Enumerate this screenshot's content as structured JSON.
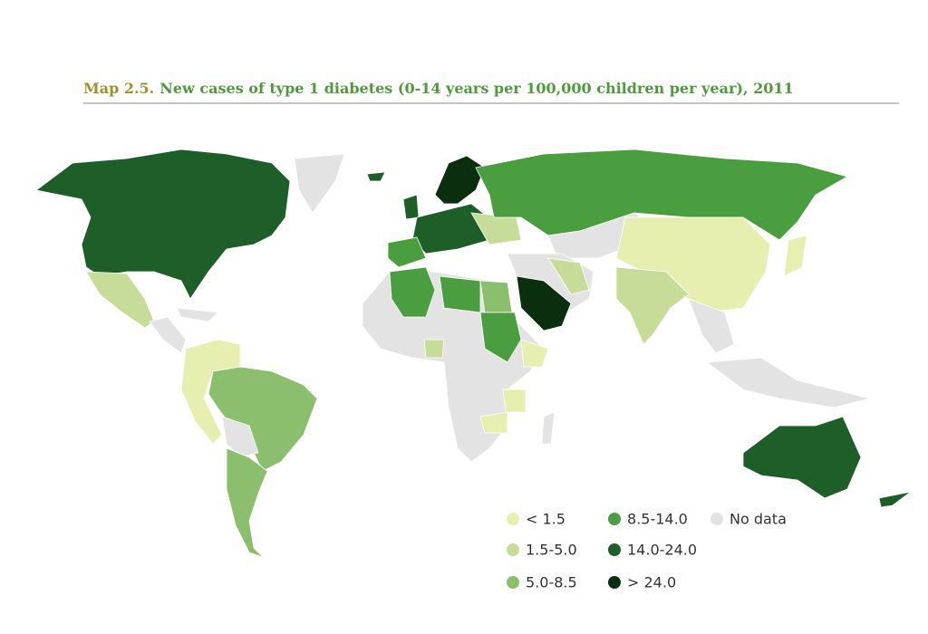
{
  "title": {
    "label": "Map 2.5.",
    "text": "New cases of type 1 diabetes (0-14 years per 100,000 children per year), 2011"
  },
  "legend": [
    {
      "label": "< 1.5",
      "color": "#e6efb0"
    },
    {
      "label": "1.5-5.0",
      "color": "#c6dc98"
    },
    {
      "label": "5.0-8.5",
      "color": "#8bbf6e"
    },
    {
      "label": "8.5-14.0",
      "color": "#4a9e3f"
    },
    {
      "label": "14.0-24.0",
      "color": "#1e5e28"
    },
    {
      "label": "> 24.0",
      "color": "#0b2e0e"
    },
    {
      "label": "No data",
      "color": "#e3e3e3"
    }
  ]
}
